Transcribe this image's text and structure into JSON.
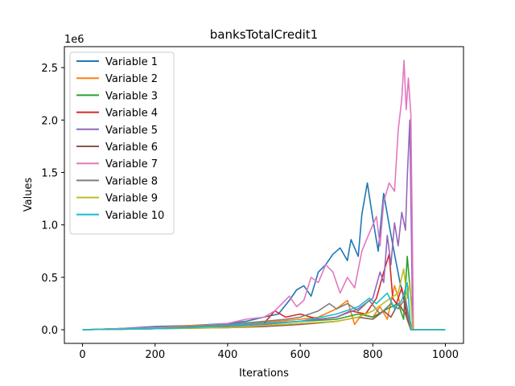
{
  "chart_data": {
    "type": "line",
    "title": "banksTotalCredit1",
    "xlabel": "Iterations",
    "ylabel": "Values",
    "y_multiplier_label": "1e6",
    "xlim": [
      -50,
      1050
    ],
    "ylim": [
      -0.13,
      2.7
    ],
    "x_ticks": [
      0,
      200,
      400,
      600,
      800,
      1000
    ],
    "x_tick_labels": [
      "0",
      "200",
      "400",
      "600",
      "800",
      "1000"
    ],
    "y_ticks": [
      0.0,
      0.5,
      1.0,
      1.5,
      2.0,
      2.5
    ],
    "y_tick_labels": [
      "0.0",
      "0.5",
      "1.0",
      "1.5",
      "2.0",
      "2.5"
    ],
    "grid": false,
    "legend_position": "upper-left",
    "series": [
      {
        "name": "Variable 1",
        "color": "#1f77b4",
        "points": [
          [
            0,
            0.0
          ],
          [
            100,
            0.01
          ],
          [
            200,
            0.03
          ],
          [
            300,
            0.04
          ],
          [
            400,
            0.06
          ],
          [
            450,
            0.08
          ],
          [
            500,
            0.12
          ],
          [
            540,
            0.15
          ],
          [
            570,
            0.28
          ],
          [
            590,
            0.38
          ],
          [
            610,
            0.42
          ],
          [
            630,
            0.32
          ],
          [
            650,
            0.55
          ],
          [
            670,
            0.62
          ],
          [
            690,
            0.72
          ],
          [
            710,
            0.78
          ],
          [
            730,
            0.66
          ],
          [
            740,
            0.86
          ],
          [
            760,
            0.7
          ],
          [
            770,
            1.1
          ],
          [
            785,
            1.4
          ],
          [
            800,
            1.06
          ],
          [
            815,
            0.75
          ],
          [
            830,
            1.3
          ],
          [
            845,
            1.0
          ],
          [
            860,
            0.72
          ],
          [
            875,
            0.45
          ],
          [
            890,
            0.25
          ],
          [
            905,
            0.0
          ],
          [
            1000,
            0.0
          ]
        ]
      },
      {
        "name": "Variable 2",
        "color": "#ff7f0e",
        "points": [
          [
            0,
            0.0
          ],
          [
            100,
            0.01
          ],
          [
            200,
            0.02
          ],
          [
            300,
            0.04
          ],
          [
            400,
            0.05
          ],
          [
            500,
            0.07
          ],
          [
            600,
            0.1
          ],
          [
            650,
            0.12
          ],
          [
            700,
            0.2
          ],
          [
            730,
            0.28
          ],
          [
            750,
            0.05
          ],
          [
            770,
            0.15
          ],
          [
            800,
            0.12
          ],
          [
            820,
            0.22
          ],
          [
            840,
            0.1
          ],
          [
            860,
            0.42
          ],
          [
            880,
            0.2
          ],
          [
            900,
            0.12
          ],
          [
            910,
            0.0
          ],
          [
            1000,
            0.0
          ]
        ]
      },
      {
        "name": "Variable 3",
        "color": "#2ca02c",
        "points": [
          [
            0,
            0.0
          ],
          [
            100,
            0.01
          ],
          [
            200,
            0.02
          ],
          [
            300,
            0.03
          ],
          [
            400,
            0.04
          ],
          [
            500,
            0.06
          ],
          [
            600,
            0.08
          ],
          [
            700,
            0.1
          ],
          [
            760,
            0.15
          ],
          [
            800,
            0.12
          ],
          [
            840,
            0.2
          ],
          [
            870,
            0.25
          ],
          [
            885,
            0.1
          ],
          [
            895,
            0.7
          ],
          [
            905,
            0.3
          ],
          [
            912,
            0.0
          ],
          [
            1000,
            0.0
          ]
        ]
      },
      {
        "name": "Variable 4",
        "color": "#d62728",
        "points": [
          [
            0,
            0.0
          ],
          [
            200,
            0.01
          ],
          [
            400,
            0.03
          ],
          [
            500,
            0.06
          ],
          [
            530,
            0.18
          ],
          [
            560,
            0.12
          ],
          [
            600,
            0.15
          ],
          [
            650,
            0.1
          ],
          [
            700,
            0.12
          ],
          [
            740,
            0.18
          ],
          [
            780,
            0.15
          ],
          [
            810,
            0.3
          ],
          [
            830,
            0.55
          ],
          [
            845,
            0.72
          ],
          [
            855,
            0.3
          ],
          [
            865,
            0.25
          ],
          [
            880,
            0.4
          ],
          [
            895,
            0.1
          ],
          [
            905,
            0.0
          ],
          [
            1000,
            0.0
          ]
        ]
      },
      {
        "name": "Variable 5",
        "color": "#9467bd",
        "points": [
          [
            0,
            0.0
          ],
          [
            200,
            0.01
          ],
          [
            400,
            0.03
          ],
          [
            500,
            0.05
          ],
          [
            600,
            0.08
          ],
          [
            700,
            0.12
          ],
          [
            760,
            0.2
          ],
          [
            800,
            0.3
          ],
          [
            820,
            0.55
          ],
          [
            830,
            0.45
          ],
          [
            840,
            0.9
          ],
          [
            850,
            0.62
          ],
          [
            860,
            1.02
          ],
          [
            870,
            0.8
          ],
          [
            880,
            1.12
          ],
          [
            890,
            0.95
          ],
          [
            895,
            1.45
          ],
          [
            902,
            2.0
          ],
          [
            910,
            0.0
          ],
          [
            1000,
            0.0
          ]
        ]
      },
      {
        "name": "Variable 6",
        "color": "#8c564b",
        "points": [
          [
            0,
            0.0
          ],
          [
            200,
            0.01
          ],
          [
            400,
            0.02
          ],
          [
            500,
            0.03
          ],
          [
            600,
            0.05
          ],
          [
            700,
            0.08
          ],
          [
            760,
            0.12
          ],
          [
            800,
            0.1
          ],
          [
            830,
            0.18
          ],
          [
            850,
            0.12
          ],
          [
            870,
            0.25
          ],
          [
            890,
            0.15
          ],
          [
            905,
            0.0
          ],
          [
            1000,
            0.0
          ]
        ]
      },
      {
        "name": "Variable 7",
        "color": "#e377c2",
        "points": [
          [
            0,
            0.0
          ],
          [
            100,
            0.01
          ],
          [
            200,
            0.02
          ],
          [
            300,
            0.03
          ],
          [
            400,
            0.06
          ],
          [
            450,
            0.1
          ],
          [
            500,
            0.12
          ],
          [
            530,
            0.18
          ],
          [
            550,
            0.25
          ],
          [
            570,
            0.32
          ],
          [
            590,
            0.22
          ],
          [
            610,
            0.28
          ],
          [
            630,
            0.5
          ],
          [
            650,
            0.45
          ],
          [
            670,
            0.62
          ],
          [
            690,
            0.55
          ],
          [
            700,
            0.45
          ],
          [
            710,
            0.35
          ],
          [
            730,
            0.5
          ],
          [
            750,
            0.4
          ],
          [
            770,
            0.75
          ],
          [
            790,
            0.92
          ],
          [
            810,
            1.08
          ],
          [
            820,
            0.8
          ],
          [
            830,
            1.22
          ],
          [
            845,
            1.4
          ],
          [
            860,
            1.32
          ],
          [
            870,
            1.9
          ],
          [
            880,
            2.2
          ],
          [
            886,
            2.57
          ],
          [
            892,
            2.1
          ],
          [
            898,
            2.4
          ],
          [
            905,
            2.05
          ],
          [
            912,
            0.0
          ],
          [
            1000,
            0.0
          ]
        ]
      },
      {
        "name": "Variable 8",
        "color": "#7f7f7f",
        "points": [
          [
            0,
            0.0
          ],
          [
            200,
            0.01
          ],
          [
            300,
            0.03
          ],
          [
            400,
            0.05
          ],
          [
            500,
            0.08
          ],
          [
            560,
            0.1
          ],
          [
            600,
            0.12
          ],
          [
            650,
            0.18
          ],
          [
            680,
            0.25
          ],
          [
            700,
            0.2
          ],
          [
            730,
            0.25
          ],
          [
            760,
            0.18
          ],
          [
            790,
            0.28
          ],
          [
            820,
            0.15
          ],
          [
            850,
            0.25
          ],
          [
            870,
            0.2
          ],
          [
            890,
            0.3
          ],
          [
            905,
            0.0
          ],
          [
            1000,
            0.0
          ]
        ]
      },
      {
        "name": "Variable 9",
        "color": "#bcbd22",
        "points": [
          [
            0,
            0.0
          ],
          [
            200,
            0.01
          ],
          [
            400,
            0.02
          ],
          [
            500,
            0.04
          ],
          [
            600,
            0.06
          ],
          [
            700,
            0.08
          ],
          [
            760,
            0.12
          ],
          [
            800,
            0.18
          ],
          [
            840,
            0.28
          ],
          [
            870,
            0.35
          ],
          [
            885,
            0.58
          ],
          [
            895,
            0.3
          ],
          [
            902,
            0.45
          ],
          [
            910,
            0.0
          ],
          [
            1000,
            0.0
          ]
        ]
      },
      {
        "name": "Variable 10",
        "color": "#17becf",
        "points": [
          [
            0,
            0.0
          ],
          [
            200,
            0.01
          ],
          [
            300,
            0.02
          ],
          [
            400,
            0.04
          ],
          [
            500,
            0.06
          ],
          [
            600,
            0.08
          ],
          [
            700,
            0.15
          ],
          [
            760,
            0.22
          ],
          [
            790,
            0.3
          ],
          [
            810,
            0.25
          ],
          [
            840,
            0.35
          ],
          [
            860,
            0.2
          ],
          [
            880,
            0.28
          ],
          [
            895,
            0.45
          ],
          [
            905,
            0.0
          ],
          [
            1000,
            0.0
          ]
        ]
      }
    ]
  }
}
